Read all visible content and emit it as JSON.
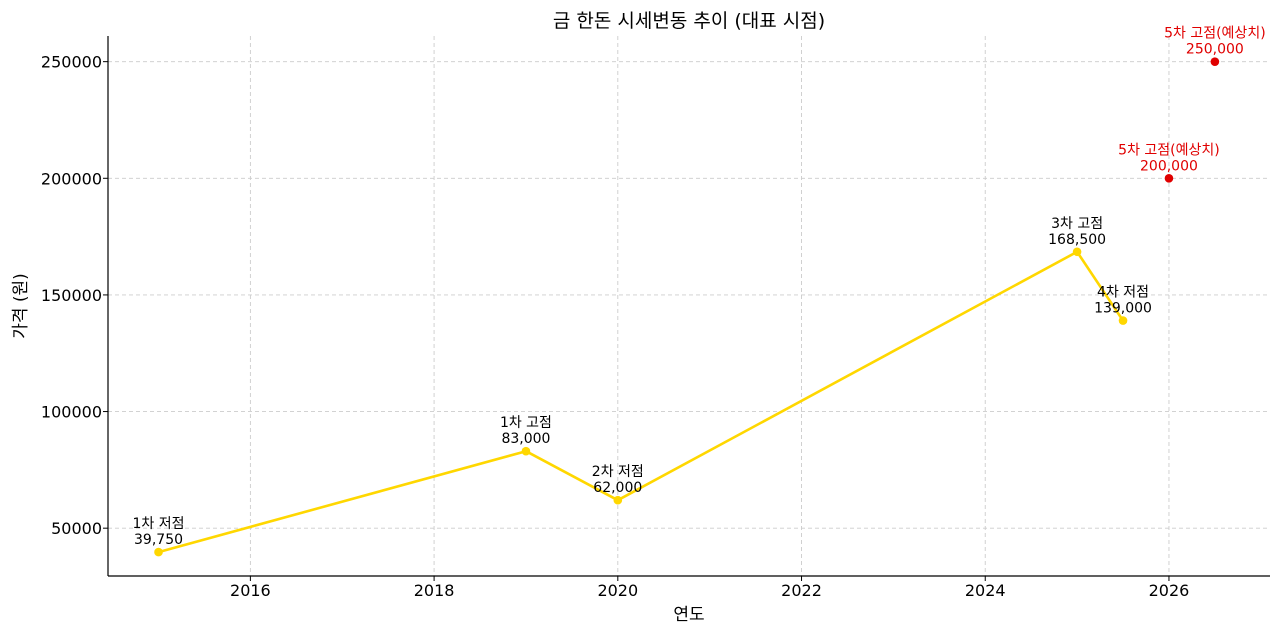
{
  "chart_data": {
    "type": "line",
    "title": "금 한돈 시세변동 추이 (대표 시점)",
    "xlabel": "연도",
    "ylabel": "가격 (원)",
    "xlim": [
      2014.45,
      2027.1
    ],
    "ylim": [
      29500,
      261000
    ],
    "x_ticks": [
      2016,
      2018,
      2020,
      2022,
      2024,
      2026
    ],
    "y_ticks": [
      50000,
      100000,
      150000,
      200000,
      250000
    ],
    "grid": true,
    "series": [
      {
        "color": "#FFD700",
        "points": [
          {
            "x": 2015.0,
            "y": 39750,
            "label": "1차 저점",
            "value_label": "39,750"
          },
          {
            "x": 2019.0,
            "y": 83000,
            "label": "1차 고점",
            "value_label": "83,000"
          },
          {
            "x": 2020.0,
            "y": 62000,
            "label": "2차 저점",
            "value_label": "62,000"
          },
          {
            "x": 2025.0,
            "y": 168500,
            "label": "3차 고점",
            "value_label": "168,500"
          },
          {
            "x": 2025.5,
            "y": 139000,
            "label": "4차 저점",
            "value_label": "139,000"
          }
        ]
      },
      {
        "color": "#E00000",
        "points": [
          {
            "x": 2026.0,
            "y": 200000,
            "label": "5차 고점(예상치)",
            "value_label": "200,000"
          },
          {
            "x": 2026.5,
            "y": 250000,
            "label": "5차 고점(예상치)",
            "value_label": "250,000"
          }
        ]
      }
    ]
  }
}
